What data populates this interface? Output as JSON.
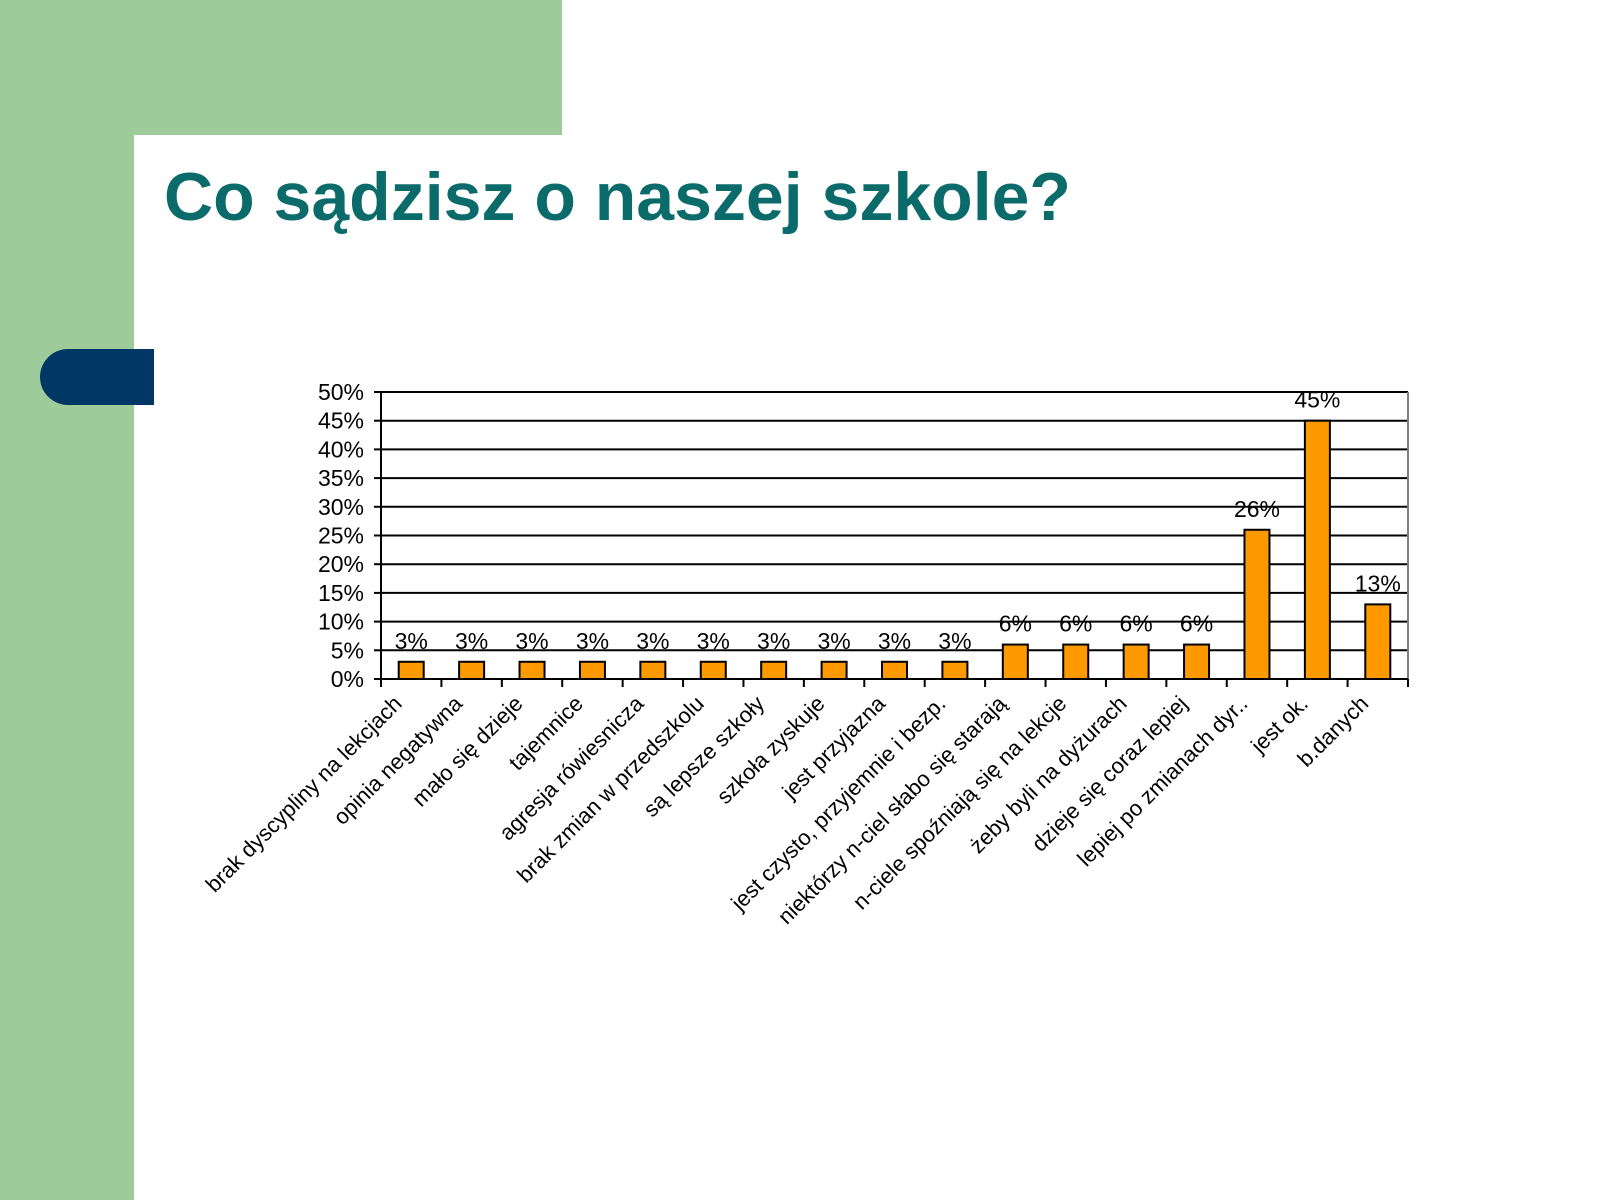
{
  "slide": {
    "title": "Co sądzisz o naszej szkole?"
  },
  "colors": {
    "background_green": "#9dcc9a",
    "accent_navy": "#003764",
    "title_teal": "#0b6b6b",
    "bar_fill": "#ff9900",
    "bar_stroke": "#000000"
  },
  "chart_data": {
    "type": "bar",
    "title": "",
    "xlabel": "",
    "ylabel": "",
    "ylim": [
      0,
      50
    ],
    "y_unit": "%",
    "grid": true,
    "y_ticks": [
      "0%",
      "5%",
      "10%",
      "15%",
      "20%",
      "25%",
      "30%",
      "35%",
      "40%",
      "45%",
      "50%"
    ],
    "categories": [
      "brak dyscypliny na lekcjach",
      "opinia negatywna",
      "mało się dzieje",
      "tajemnice",
      "agresja rówiesnicza",
      "brak zmian w przedszkolu",
      "są lepsze szkoły",
      "szkoła zyskuje",
      "jest przyjazna",
      "jest czysto, przyjemnie i bezp.",
      "niektórzy n-ciel słabo się starają",
      "n-ciele spoźniają się na lekcje",
      "żeby byli na dyżurach",
      "dzieje się coraz lepiej",
      "lepiej po zmianach dyr..",
      "jest ok.",
      "b.danych"
    ],
    "values": [
      3,
      3,
      3,
      3,
      3,
      3,
      3,
      3,
      3,
      3,
      6,
      6,
      6,
      6,
      26,
      45,
      13
    ],
    "data_labels": [
      "3%",
      "3%",
      "3%",
      "3%",
      "3%",
      "3%",
      "3%",
      "3%",
      "3%",
      "3%",
      "6%",
      "6%",
      "6%",
      "6%",
      "26%",
      "45%",
      "13%"
    ]
  }
}
